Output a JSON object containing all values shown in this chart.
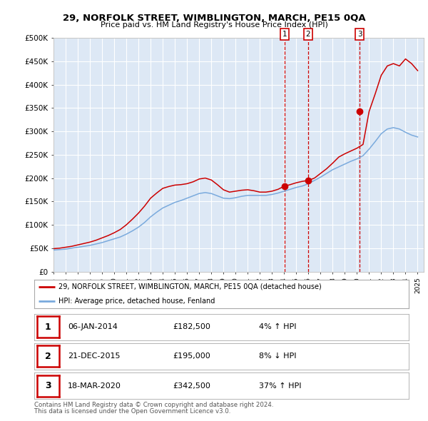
{
  "title": "29, NORFOLK STREET, WIMBLINGTON, MARCH, PE15 0QA",
  "subtitle": "Price paid vs. HM Land Registry's House Price Index (HPI)",
  "ylim": [
    0,
    500000
  ],
  "yticks": [
    0,
    50000,
    100000,
    150000,
    200000,
    250000,
    300000,
    350000,
    400000,
    450000,
    500000
  ],
  "ytick_labels": [
    "£0",
    "£50K",
    "£100K",
    "£150K",
    "£200K",
    "£250K",
    "£300K",
    "£350K",
    "£400K",
    "£450K",
    "£500K"
  ],
  "xlim_start": 1995.0,
  "xlim_end": 2025.5,
  "plot_bg_color": "#dde8f5",
  "grid_color": "#ffffff",
  "sale_dates": [
    2014.03,
    2015.97,
    2020.21
  ],
  "sale_prices": [
    182500,
    195000,
    342500
  ],
  "sale_labels": [
    "1",
    "2",
    "3"
  ],
  "sale_dot_color": "#cc0000",
  "dashed_line_color": "#cc0000",
  "legend_line1": "29, NORFOLK STREET, WIMBLINGTON, MARCH, PE15 0QA (detached house)",
  "legend_line2": "HPI: Average price, detached house, Fenland",
  "table_rows": [
    [
      "1",
      "06-JAN-2014",
      "£182,500",
      "4% ↑ HPI"
    ],
    [
      "2",
      "21-DEC-2015",
      "£195,000",
      "8% ↓ HPI"
    ],
    [
      "3",
      "18-MAR-2020",
      "£342,500",
      "37% ↑ HPI"
    ]
  ],
  "footer_line1": "Contains HM Land Registry data © Crown copyright and database right 2024.",
  "footer_line2": "This data is licensed under the Open Government Licence v3.0.",
  "red_line_color": "#cc0000",
  "blue_line_color": "#7aaadd",
  "hpi_x": [
    1995.0,
    1995.5,
    1996.0,
    1996.5,
    1997.0,
    1997.5,
    1998.0,
    1998.5,
    1999.0,
    1999.5,
    2000.0,
    2000.5,
    2001.0,
    2001.5,
    2002.0,
    2002.5,
    2003.0,
    2003.5,
    2004.0,
    2004.5,
    2005.0,
    2005.5,
    2006.0,
    2006.5,
    2007.0,
    2007.5,
    2008.0,
    2008.5,
    2009.0,
    2009.5,
    2010.0,
    2010.5,
    2011.0,
    2011.5,
    2012.0,
    2012.5,
    2013.0,
    2013.5,
    2014.0,
    2014.5,
    2015.0,
    2015.5,
    2016.0,
    2016.5,
    2017.0,
    2017.5,
    2018.0,
    2018.5,
    2019.0,
    2019.5,
    2020.0,
    2020.5,
    2021.0,
    2021.5,
    2022.0,
    2022.5,
    2023.0,
    2023.5,
    2024.0,
    2024.5,
    2025.0
  ],
  "hpi_y": [
    46000,
    47000,
    48000,
    50000,
    52000,
    54000,
    56000,
    59000,
    62000,
    66000,
    70000,
    74000,
    80000,
    87000,
    95000,
    105000,
    117000,
    127000,
    136000,
    142000,
    148000,
    152000,
    157000,
    162000,
    167000,
    169000,
    167000,
    162000,
    157000,
    156000,
    158000,
    161000,
    163000,
    163000,
    163000,
    163000,
    165000,
    168000,
    172000,
    176000,
    180000,
    183000,
    188000,
    195000,
    202000,
    210000,
    218000,
    224000,
    230000,
    236000,
    241000,
    248000,
    262000,
    278000,
    295000,
    305000,
    308000,
    305000,
    298000,
    292000,
    288000
  ],
  "red_x": [
    1995.0,
    1995.5,
    1996.0,
    1996.5,
    1997.0,
    1997.5,
    1998.0,
    1998.5,
    1999.0,
    1999.5,
    2000.0,
    2000.5,
    2001.0,
    2001.5,
    2002.0,
    2002.5,
    2003.0,
    2003.5,
    2004.0,
    2004.5,
    2005.0,
    2005.5,
    2006.0,
    2006.5,
    2007.0,
    2007.5,
    2008.0,
    2008.5,
    2009.0,
    2009.5,
    2010.0,
    2010.5,
    2011.0,
    2011.5,
    2012.0,
    2012.5,
    2013.0,
    2013.5,
    2014.0,
    2014.5,
    2015.0,
    2015.5,
    2016.0,
    2016.5,
    2017.0,
    2017.5,
    2018.0,
    2018.5,
    2019.0,
    2019.5,
    2020.0,
    2020.5,
    2021.0,
    2021.5,
    2022.0,
    2022.5,
    2023.0,
    2023.5,
    2024.0,
    2024.5,
    2025.0
  ],
  "red_y": [
    49000,
    50000,
    52000,
    54000,
    57000,
    60000,
    63000,
    67000,
    72000,
    77000,
    83000,
    90000,
    100000,
    112000,
    125000,
    140000,
    157000,
    168000,
    178000,
    182000,
    185000,
    186000,
    188000,
    192000,
    198000,
    200000,
    196000,
    186000,
    175000,
    170000,
    172000,
    174000,
    175000,
    173000,
    170000,
    170000,
    172000,
    176000,
    182500,
    186000,
    190000,
    193000,
    195000,
    200000,
    210000,
    220000,
    232000,
    245000,
    252000,
    258000,
    264000,
    272000,
    342500,
    380000,
    420000,
    440000,
    445000,
    440000,
    455000,
    445000,
    430000
  ]
}
